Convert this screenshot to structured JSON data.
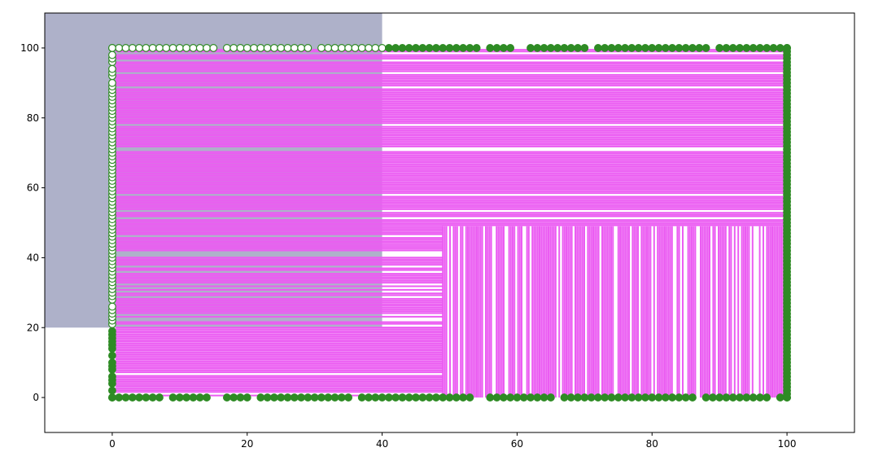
{
  "chart_data": {
    "type": "scatter",
    "title": "",
    "xlabel": "",
    "ylabel": "",
    "xlim": [
      -10,
      110
    ],
    "ylim": [
      -10,
      110
    ],
    "xticks": [
      0,
      20,
      40,
      60,
      80,
      100
    ],
    "yticks": [
      0,
      20,
      40,
      60,
      80,
      100
    ],
    "xtick_labels": [
      "0",
      "20",
      "40",
      "60",
      "80",
      "100"
    ],
    "ytick_labels": [
      "0",
      "20",
      "40",
      "60",
      "80",
      "100"
    ],
    "grid": false,
    "legend": "none",
    "shaded_region": {
      "x": [
        -10,
        40
      ],
      "y": [
        20,
        110
      ],
      "color": "#aeb1c9"
    },
    "fill": {
      "color": "#eb5cf2",
      "horizontal_band_region": {
        "x": [
          0.5,
          99.5
        ],
        "y": [
          0.5,
          99.5
        ]
      },
      "lower_right_vertical_region": {
        "x": [
          49,
          99.5
        ],
        "y": [
          0,
          49
        ]
      },
      "note_free": true
    },
    "marker_series": {
      "name": "",
      "edgecolor": "#2e8b24",
      "facecolor_inside_shaded": "#ffffff",
      "facecolor_outside_shaded": "#2e8b24",
      "bottom_edge_y": 0,
      "top_edge_y": 100,
      "left_edge_x": 0,
      "right_edge_x": 100,
      "bottom_edge_x": [
        0,
        1,
        2,
        3,
        4,
        5,
        6,
        7,
        9,
        10,
        11,
        12,
        13,
        14,
        17,
        18,
        19,
        20,
        22,
        23,
        24,
        25,
        26,
        27,
        28,
        29,
        30,
        31,
        32,
        33,
        34,
        35,
        37,
        38,
        39,
        40,
        41,
        42,
        43,
        44,
        45,
        46,
        47,
        48,
        49,
        50,
        51,
        52,
        53,
        56,
        57,
        58,
        59,
        60,
        61,
        62,
        63,
        64,
        65,
        67,
        68,
        69,
        70,
        71,
        72,
        73,
        74,
        75,
        76,
        77,
        78,
        79,
        80,
        81,
        82,
        83,
        84,
        85,
        86,
        88,
        89,
        90,
        91,
        92,
        93,
        94,
        95,
        96,
        97,
        99,
        100
      ],
      "top_edge_x": [
        0,
        1,
        2,
        3,
        4,
        5,
        6,
        7,
        8,
        9,
        10,
        11,
        12,
        13,
        14,
        15,
        17,
        18,
        19,
        20,
        21,
        22,
        23,
        24,
        25,
        26,
        27,
        28,
        29,
        31,
        32,
        33,
        34,
        35,
        36,
        37,
        38,
        39,
        40,
        41,
        42,
        43,
        44,
        45,
        46,
        47,
        48,
        49,
        50,
        51,
        52,
        53,
        54,
        56,
        57,
        58,
        59,
        62,
        63,
        64,
        65,
        66,
        67,
        68,
        69,
        70,
        72,
        73,
        74,
        75,
        76,
        77,
        78,
        79,
        80,
        81,
        82,
        83,
        84,
        85,
        86,
        87,
        88,
        90,
        91,
        92,
        93,
        94,
        95,
        96,
        97,
        98,
        99,
        100
      ],
      "left_edge_y": [
        0,
        2,
        4,
        5,
        6,
        8,
        9,
        10,
        12,
        14,
        15,
        16,
        17,
        18,
        19,
        21,
        22,
        23,
        24,
        25,
        26,
        28,
        29,
        30,
        31,
        32,
        33,
        34,
        35,
        36,
        37,
        38,
        39,
        40,
        41,
        42,
        43,
        44,
        45,
        46,
        47,
        48,
        49,
        50,
        51,
        52,
        53,
        54,
        55,
        56,
        57,
        58,
        59,
        60,
        61,
        62,
        63,
        64,
        65,
        66,
        67,
        68,
        69,
        70,
        71,
        72,
        73,
        74,
        75,
        76,
        77,
        78,
        79,
        80,
        81,
        82,
        83,
        84,
        85,
        86,
        87,
        88,
        89,
        90,
        92,
        93,
        94,
        96,
        97,
        98,
        100
      ],
      "right_edge_y": [
        0,
        1,
        2,
        3,
        4,
        5,
        6,
        7,
        8,
        9,
        10,
        11,
        12,
        13,
        14,
        15,
        16,
        17,
        18,
        19,
        20,
        21,
        22,
        23,
        24,
        25,
        26,
        27,
        28,
        29,
        30,
        31,
        32,
        33,
        34,
        35,
        36,
        37,
        38,
        39,
        40,
        41,
        42,
        43,
        44,
        45,
        46,
        47,
        48,
        49,
        50,
        51,
        52,
        53,
        54,
        55,
        56,
        57,
        58,
        59,
        60,
        61,
        62,
        63,
        64,
        65,
        66,
        67,
        68,
        69,
        70,
        71,
        72,
        73,
        74,
        75,
        76,
        77,
        78,
        79,
        80,
        81,
        82,
        83,
        84,
        85,
        86,
        87,
        88,
        89,
        90,
        91,
        92,
        93,
        94,
        95,
        96,
        97,
        98,
        99,
        100
      ]
    }
  }
}
